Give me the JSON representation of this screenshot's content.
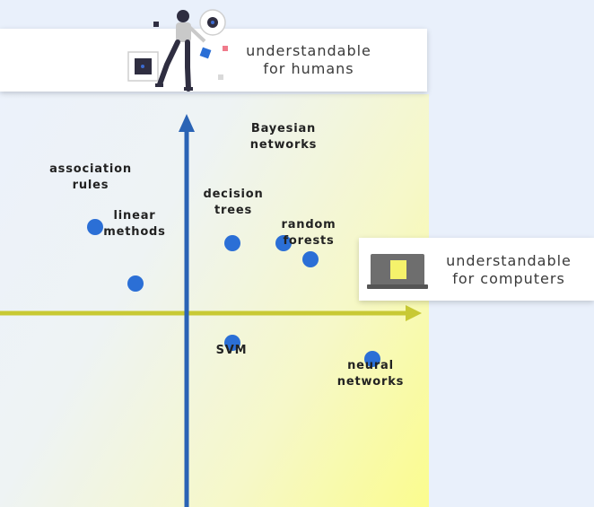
{
  "axes": {
    "vertical": {
      "label_line1": "understandable",
      "label_line2": "for humans",
      "color": "#2a63b5"
    },
    "horizontal": {
      "label_line1": "understandable",
      "label_line2": "for computers",
      "color": "#c8c934"
    }
  },
  "methods": [
    {
      "id": "association-rules",
      "line1": "association",
      "line2": "rules",
      "x": -3.4,
      "y": 3.2
    },
    {
      "id": "linear-methods",
      "line1": "linear",
      "line2": "methods",
      "x": -1.9,
      "y": 1.1
    },
    {
      "id": "decision-trees",
      "line1": "decision",
      "line2": "trees",
      "x": 1.7,
      "y": 2.6
    },
    {
      "id": "bayesian-networks",
      "line1": "Bayesian",
      "line2": "networks",
      "x": 3.6,
      "y": 2.6
    },
    {
      "id": "random-forests",
      "line1": "random",
      "line2": "forests",
      "x": 4.6,
      "y": 2.0
    },
    {
      "id": "svm",
      "line1": "SVM",
      "line2": "",
      "x": 1.7,
      "y": -1.1
    },
    {
      "id": "neural-networks",
      "line1": "neural",
      "line2": "networks",
      "x": 6.9,
      "y": -1.7
    }
  ],
  "colors": {
    "dot": "#2b6fd6",
    "panel_gradient_end": "#fbfc8e",
    "background": "#e9f0fb"
  }
}
